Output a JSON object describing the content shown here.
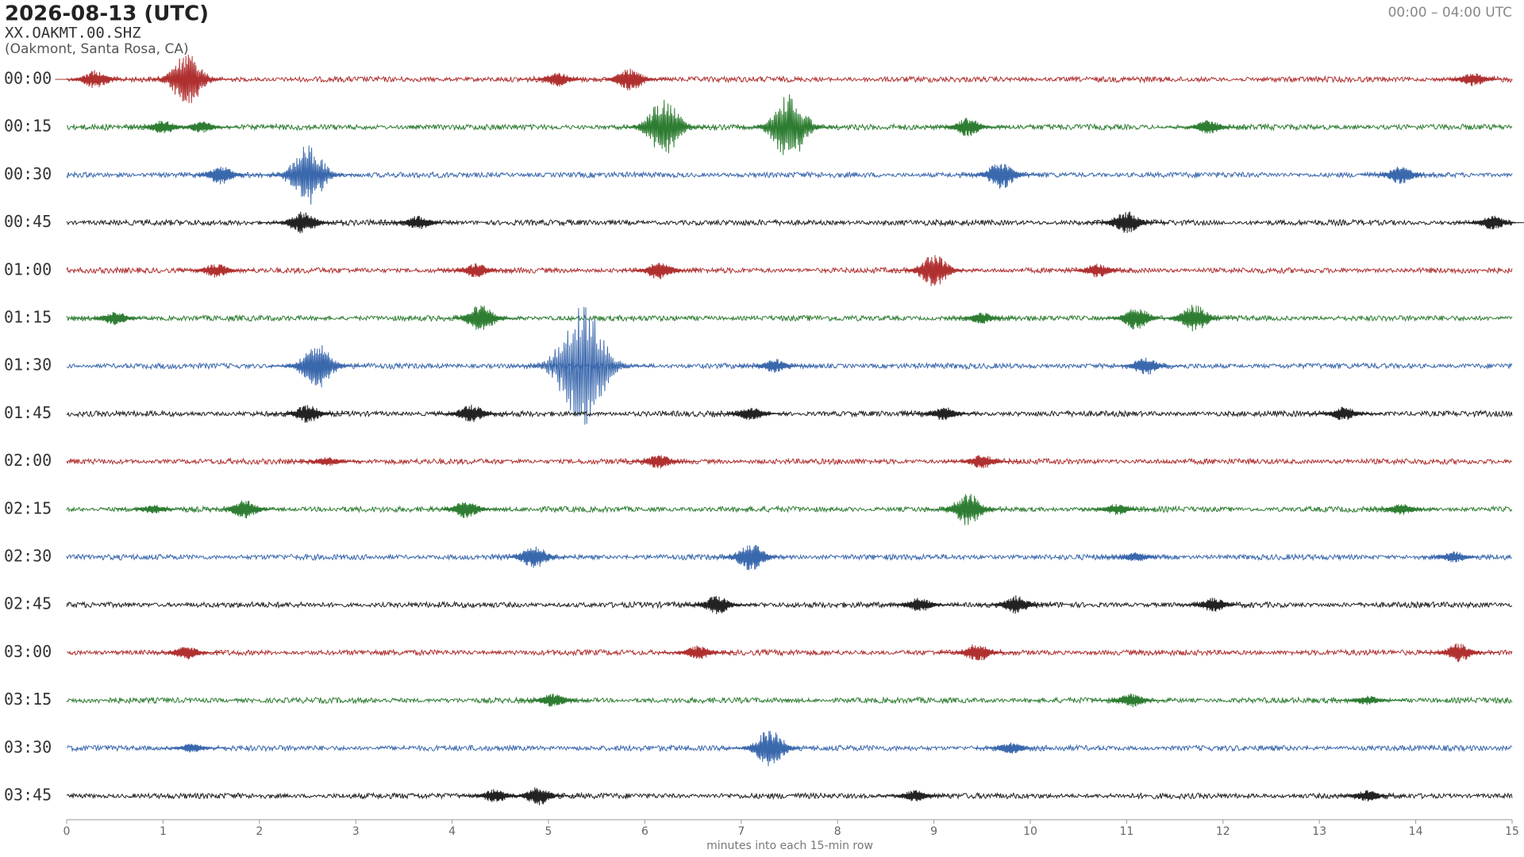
{
  "chart_data": {
    "type": "helicorder",
    "title": "2026-08-13  (UTC)",
    "subtitle": "XX.OAKMT.00.SHZ",
    "location": "(Oakmont, Santa Rosa, CA)",
    "time_range": "00:00 – 04:00 UTC",
    "xlabel": "minutes into each 15-min row",
    "xlim": [
      0,
      15
    ],
    "xticks": [
      0,
      1,
      2,
      3,
      4,
      5,
      6,
      7,
      8,
      9,
      10,
      11,
      12,
      13,
      14,
      15
    ],
    "noise": 0.06,
    "series": [
      {
        "name": "00:00",
        "color": "#b03030",
        "x": [
          0.3,
          1.25,
          5.1,
          5.85,
          14.6
        ],
        "values": [
          0.2,
          0.55,
          0.15,
          0.25,
          0.15
        ]
      },
      {
        "name": "00:15",
        "color": "#2e7d32",
        "x": [
          1.0,
          1.4,
          6.2,
          7.5,
          9.35,
          11.85
        ],
        "values": [
          0.15,
          0.12,
          0.6,
          0.7,
          0.2,
          0.15
        ]
      },
      {
        "name": "00:30",
        "color": "#3a68ad",
        "x": [
          1.6,
          2.5,
          9.7,
          13.85
        ],
        "values": [
          0.2,
          0.65,
          0.3,
          0.2
        ]
      },
      {
        "name": "00:45",
        "color": "#222222",
        "x": [
          2.45,
          3.65,
          11.0,
          14.8
        ],
        "values": [
          0.25,
          0.15,
          0.25,
          0.15
        ]
      },
      {
        "name": "01:00",
        "color": "#b03030",
        "x": [
          1.55,
          4.25,
          6.15,
          9.0,
          10.7
        ],
        "values": [
          0.15,
          0.15,
          0.2,
          0.35,
          0.15
        ]
      },
      {
        "name": "01:15",
        "color": "#2e7d32",
        "x": [
          0.5,
          4.3,
          9.5,
          11.1,
          11.7
        ],
        "values": [
          0.15,
          0.3,
          0.12,
          0.25,
          0.3
        ]
      },
      {
        "name": "01:30",
        "color": "#3a68ad",
        "x": [
          2.6,
          5.35,
          7.35,
          11.2
        ],
        "values": [
          0.5,
          1.3,
          0.15,
          0.2
        ]
      },
      {
        "name": "01:45",
        "color": "#222222",
        "x": [
          2.5,
          4.2,
          7.1,
          9.1,
          13.25
        ],
        "values": [
          0.2,
          0.2,
          0.15,
          0.15,
          0.15
        ]
      },
      {
        "name": "02:00",
        "color": "#b03030",
        "x": [
          2.7,
          6.15,
          9.5
        ],
        "values": [
          0.1,
          0.15,
          0.15
        ]
      },
      {
        "name": "02:15",
        "color": "#2e7d32",
        "x": [
          0.9,
          1.85,
          4.15,
          9.35,
          10.9,
          13.85
        ],
        "values": [
          0.1,
          0.2,
          0.2,
          0.35,
          0.12,
          0.12
        ]
      },
      {
        "name": "02:30",
        "color": "#3a68ad",
        "x": [
          4.85,
          7.1,
          11.1,
          14.4
        ],
        "values": [
          0.25,
          0.3,
          0.1,
          0.12
        ]
      },
      {
        "name": "02:45",
        "color": "#222222",
        "x": [
          6.75,
          8.85,
          9.85,
          11.9
        ],
        "values": [
          0.2,
          0.15,
          0.2,
          0.15
        ]
      },
      {
        "name": "03:00",
        "color": "#b03030",
        "x": [
          1.25,
          6.55,
          9.45,
          14.45
        ],
        "values": [
          0.15,
          0.15,
          0.2,
          0.2
        ]
      },
      {
        "name": "03:15",
        "color": "#2e7d32",
        "x": [
          5.05,
          11.05,
          13.5
        ],
        "values": [
          0.15,
          0.15,
          0.1
        ]
      },
      {
        "name": "03:30",
        "color": "#3a68ad",
        "x": [
          1.3,
          7.3,
          9.8
        ],
        "values": [
          0.1,
          0.4,
          0.12
        ]
      },
      {
        "name": "03:45",
        "color": "#222222",
        "x": [
          4.45,
          4.9,
          8.8,
          13.5
        ],
        "values": [
          0.15,
          0.2,
          0.12,
          0.12
        ]
      }
    ]
  }
}
